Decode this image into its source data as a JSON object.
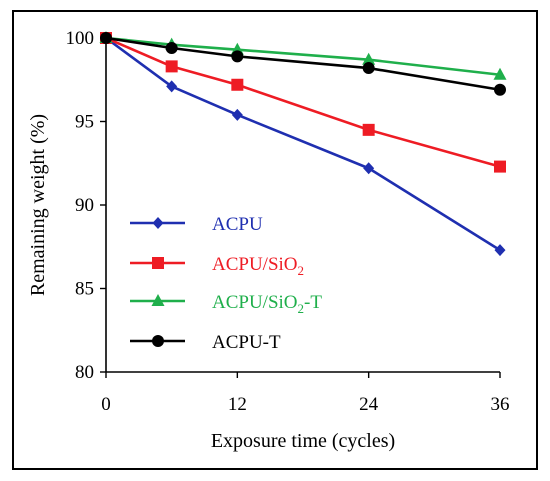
{
  "chart_data": {
    "type": "line",
    "title": "",
    "xlabel": "Exposure time (cycles)",
    "ylabel": "Remaining weight (%)",
    "x": [
      0,
      6,
      12,
      24,
      36
    ],
    "xticks": [
      "0",
      "12",
      "24",
      "36"
    ],
    "xlim": [
      0,
      36
    ],
    "yticks": [
      "80",
      "85",
      "90",
      "95",
      "100"
    ],
    "ylim": [
      80,
      100
    ],
    "grid": false,
    "legend_position": "lower-left",
    "series": [
      {
        "name": "ACPU",
        "marker": "diamond",
        "color": "#1f2fb0",
        "values": [
          100,
          97.1,
          95.4,
          92.2,
          87.3
        ]
      },
      {
        "name": "ACPU/SiO2",
        "marker": "square",
        "color": "#ee1c24",
        "values": [
          100,
          98.3,
          97.2,
          94.5,
          92.3
        ]
      },
      {
        "name": "ACPU/SiO2-T",
        "marker": "triangle",
        "color": "#1faf4b",
        "values": [
          100,
          99.6,
          99.3,
          98.7,
          97.8
        ]
      },
      {
        "name": "ACPU-T",
        "marker": "circle",
        "color": "#000000",
        "values": [
          100,
          99.4,
          98.9,
          98.2,
          96.9
        ]
      }
    ]
  }
}
